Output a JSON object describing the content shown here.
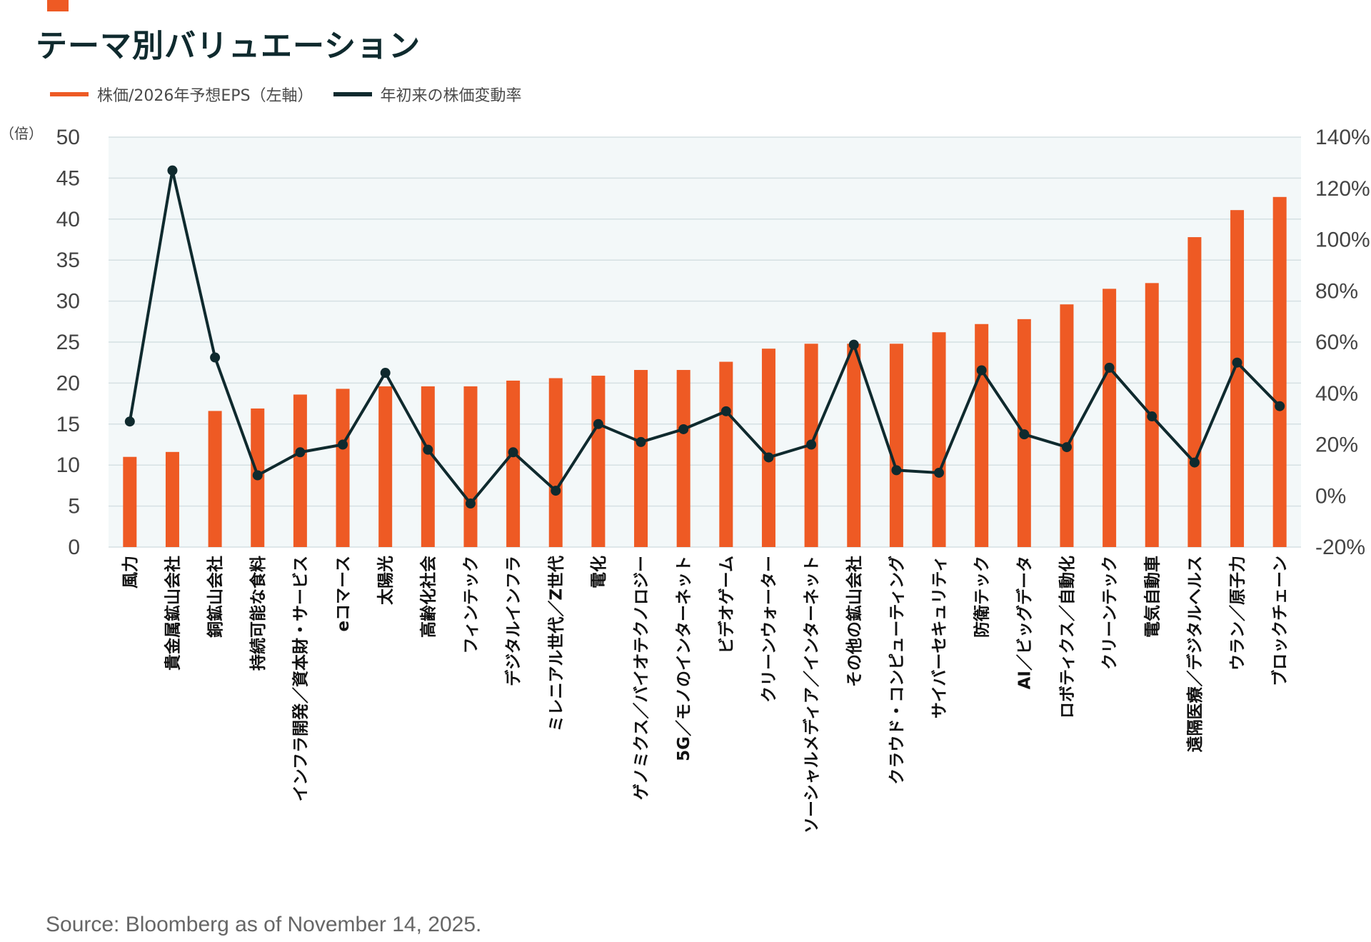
{
  "title": "テーマ別バリュエーション",
  "legend": {
    "bar_label": "株価/2026年予想EPS（左軸）",
    "line_label": "年初来の株価変動率"
  },
  "source": "Source: Bloomberg as of November 14, 2025.",
  "colors": {
    "bar": "#ee5a24",
    "line": "#0f2a2e",
    "plot_bg": "#f3f8f9",
    "grid": "#d5e0e3"
  },
  "chart_data": {
    "type": "bar",
    "title": "テーマ別バリュエーション",
    "unit_left": "（倍）",
    "categories": [
      "風力",
      "貴金属鉱山会社",
      "銅鉱山会社",
      "持続可能な食料",
      "インフラ開発／資本財・サービス",
      "eコマース",
      "太陽光",
      "高齢化社会",
      "フィンテック",
      "デジタルインフラ",
      "ミレニアル世代／Z世代",
      "電化",
      "ゲノミクス／バイオテクノロジー",
      "5G／モノのインターネット",
      "ビデオゲーム",
      "クリーンウォーター",
      "ソーシャルメディア／インターネット",
      "その他の鉱山会社",
      "クラウド・コンピューティング",
      "サイバーセキュリティ",
      "防衛テック",
      "AI／ビッグデータ",
      "ロボティクス／自動化",
      "クリーンテック",
      "電気自動車",
      "遠隔医療／デジタルヘルス",
      "ウラン／原子力",
      "ブロックチェーン"
    ],
    "series": [
      {
        "name": "株価/2026年予想EPS（左軸）",
        "axis": "left",
        "type": "bar",
        "values": [
          11.0,
          11.6,
          16.6,
          16.9,
          18.6,
          19.3,
          19.6,
          19.6,
          19.6,
          20.3,
          20.6,
          20.9,
          21.6,
          21.6,
          22.6,
          24.2,
          24.8,
          24.8,
          24.8,
          26.2,
          27.2,
          27.8,
          29.6,
          31.5,
          32.2,
          37.8,
          41.1,
          42.7
        ]
      },
      {
        "name": "年初来の株価変動率",
        "axis": "right",
        "type": "line",
        "values": [
          29,
          127,
          54,
          8,
          17,
          20,
          48,
          18,
          -3,
          17,
          2,
          28,
          21,
          26,
          33,
          15,
          20,
          59,
          10,
          9,
          49,
          24,
          19,
          50,
          31,
          13,
          52,
          35
        ]
      }
    ],
    "y_left": {
      "min": 0,
      "max": 50,
      "ticks": [
        0,
        5,
        10,
        15,
        20,
        25,
        30,
        35,
        40,
        45,
        50
      ]
    },
    "y_right": {
      "min": -20,
      "max": 140,
      "ticks": [
        "-20%",
        "0%",
        "20%",
        "40%",
        "60%",
        "80%",
        "100%",
        "120%",
        "140%"
      ]
    },
    "grid": true,
    "legend_position": "top-left"
  }
}
